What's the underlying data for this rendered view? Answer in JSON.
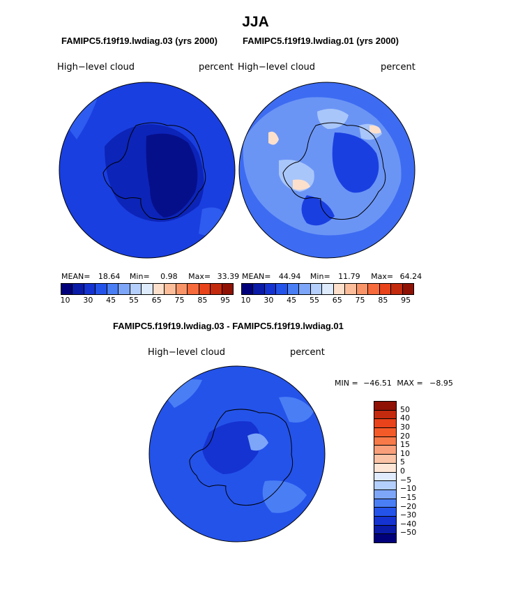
{
  "title": "JJA",
  "panels": [
    {
      "case_title": "FAMIPC5.f19f19.lwdiag.03 (yrs 2000)",
      "variable": "High−level cloud",
      "units": "percent",
      "stats": {
        "mean_label": "MEAN=",
        "mean": "18.64",
        "min_label": "Min=",
        "min": "0.98",
        "max_label": "Max=",
        "max": "33.39"
      },
      "fill_level": 0.18,
      "colors": {
        "base": "#1a3fe0",
        "mid": "#0c24b8",
        "deep": "#060f8a",
        "light": "#2e5bf0"
      }
    },
    {
      "case_title": "FAMIPC5.f19f19.lwdiag.01 (yrs 2000)",
      "variable": "High−level cloud",
      "units": "percent",
      "stats": {
        "mean_label": "MEAN=",
        "mean": "44.94",
        "min_label": "Min=",
        "min": "11.79",
        "max_label": "Max=",
        "max": "64.24"
      },
      "fill_level": 0.45,
      "colors": {
        "base": "#3d6cf2",
        "mid": "#6b95f5",
        "deep": "#1a3fe0",
        "light": "#a9c6fa"
      }
    }
  ],
  "horizontal_colorbar": {
    "colors": [
      "#00007a",
      "#0a1ba8",
      "#1533d0",
      "#2453ea",
      "#4a7ef5",
      "#7ea6f8",
      "#b4cffb",
      "#deebfd",
      "#fde0cc",
      "#fbbd9a",
      "#f99468",
      "#f76a3c",
      "#e8431a",
      "#c32a0e",
      "#8f1205"
    ],
    "tick_labels": [
      "10",
      "30",
      "45",
      "55",
      "65",
      "75",
      "85",
      "95"
    ]
  },
  "difference": {
    "title": "FAMIPC5.f19f19.lwdiag.03 - FAMIPC5.f19f19.lwdiag.01",
    "variable": "High−level cloud",
    "units": "percent",
    "range_text": {
      "min_label": "MIN =",
      "min": "−46.51",
      "max_label": "MAX =",
      "max": "−8.95"
    },
    "colors": {
      "base": "#2453ea",
      "mid": "#1533d0",
      "light": "#4a7ef5",
      "pale": "#7ea6f8"
    }
  },
  "vertical_colorbar": {
    "colors": [
      "#8f1205",
      "#c32a0e",
      "#e8431a",
      "#f45a28",
      "#f77a48",
      "#f9a07a",
      "#fbc4a6",
      "#fde6d6",
      "#e0ecfd",
      "#b4cffb",
      "#7ea6f8",
      "#4a7ef5",
      "#2453ea",
      "#1533d0",
      "#0a1ba8",
      "#00007a"
    ],
    "tick_labels": [
      "50",
      "40",
      "30",
      "20",
      "15",
      "10",
      "5",
      "0",
      "−5",
      "−10",
      "−15",
      "−20",
      "−30",
      "−40",
      "−50"
    ]
  }
}
